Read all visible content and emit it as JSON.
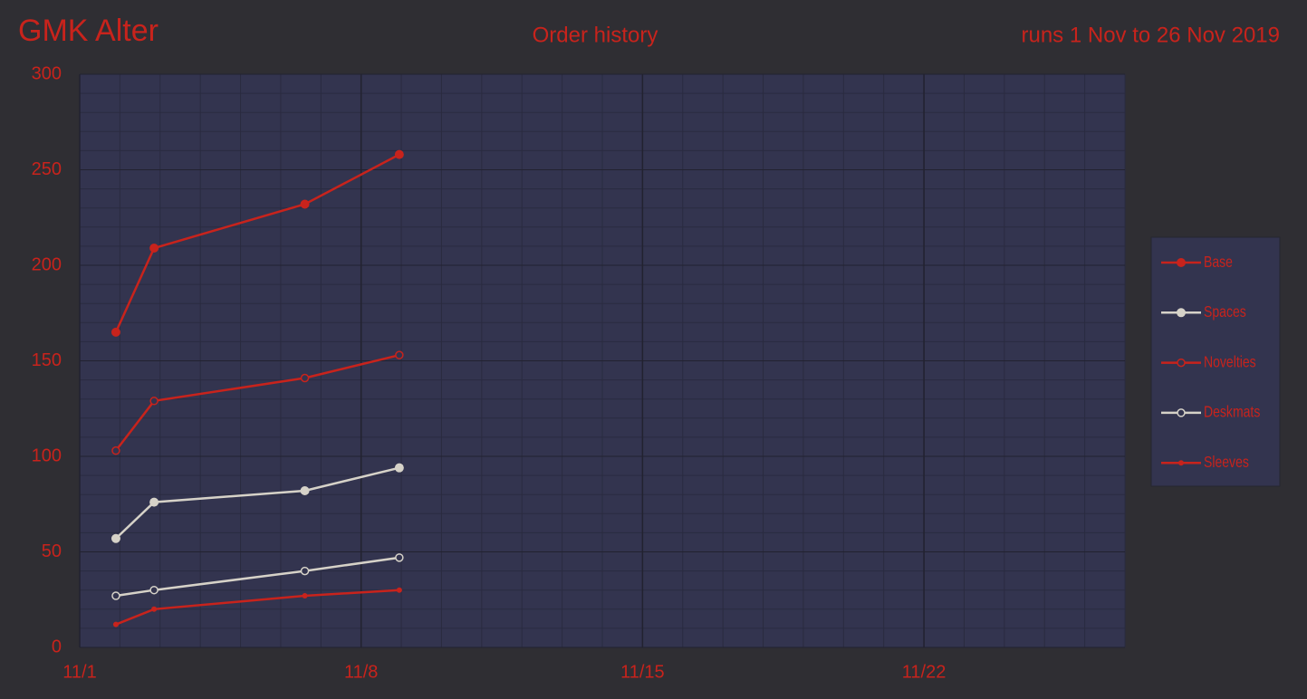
{
  "chart_data": {
    "type": "line",
    "title": "GMK Alter",
    "subtitle": "Order history",
    "annotation": "runs 1 Nov to 26 Nov 2019",
    "x": [
      1.9,
      2.85,
      6.6,
      8.95
    ],
    "xlim": [
      1,
      27
    ],
    "xticks": [
      {
        "value": 1,
        "label": "11/1"
      },
      {
        "value": 8,
        "label": "11/8"
      },
      {
        "value": 15,
        "label": "11/15"
      },
      {
        "value": 22,
        "label": "11/22"
      }
    ],
    "ylim": [
      0,
      300
    ],
    "yticks": [
      0,
      50,
      100,
      150,
      200,
      250,
      300
    ],
    "grid": true,
    "legend": "right",
    "series": [
      {
        "name": "Base",
        "color": "#c8231c",
        "marker": "filled",
        "values": [
          165,
          209,
          232,
          258
        ]
      },
      {
        "name": "Spaces",
        "color": "#d6d2c8",
        "marker": "filled",
        "values": [
          57,
          76,
          82,
          94
        ]
      },
      {
        "name": "Novelties",
        "color": "#c8231c",
        "marker": "open",
        "values": [
          103,
          129,
          141,
          153
        ]
      },
      {
        "name": "Deskmats",
        "color": "#d6d2c8",
        "marker": "open",
        "values": [
          27,
          30,
          40,
          47
        ]
      },
      {
        "name": "Sleeves",
        "color": "#c8231c",
        "marker": "small",
        "values": [
          12,
          20,
          27,
          30
        ]
      }
    ]
  }
}
